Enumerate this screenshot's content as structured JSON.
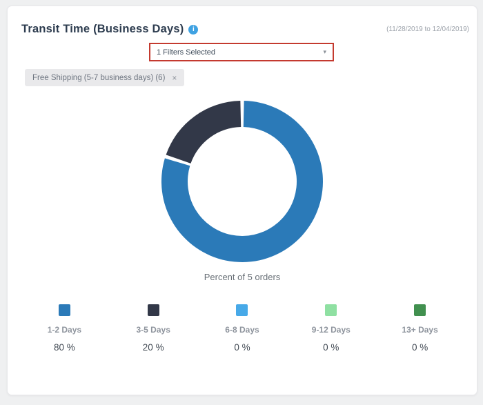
{
  "page": {
    "title": "Transit Time (Business Days)",
    "date_range": "(11/28/2019 to 12/04/2019)"
  },
  "filters": {
    "dropdown_value": "1 Filters Selected",
    "dropdown_caret": "▾",
    "tag_label": "Free Shipping (5-7 business days) (6)",
    "tag_close": "×"
  },
  "info_icon_glyph": "i",
  "chart_data": {
    "type": "pie",
    "subtype": "donut",
    "title": "Transit Time (Business Days)",
    "caption": "Percent of 5 orders",
    "total_orders": 5,
    "categories": [
      "1-2 Days",
      "3-5 Days",
      "6-8 Days",
      "9-12 Days",
      "13+ Days"
    ],
    "values": [
      80,
      20,
      0,
      0,
      0
    ],
    "unit": "%",
    "legend_percent_labels": [
      "80 %",
      "20 %",
      "0 %",
      "0 %",
      "0 %"
    ],
    "colors": [
      "#2b7ab8",
      "#323848",
      "#47a9e8",
      "#8fe0a2",
      "#41904f"
    ],
    "start_angle_deg": 0,
    "direction": "clockwise",
    "legend_position": "bottom"
  },
  "colors": {
    "highlight_red": "#c43a2f",
    "info_icon_blue": "#3fa2e2",
    "page_background": "#eff0f1",
    "card_background": "#ffffff"
  }
}
